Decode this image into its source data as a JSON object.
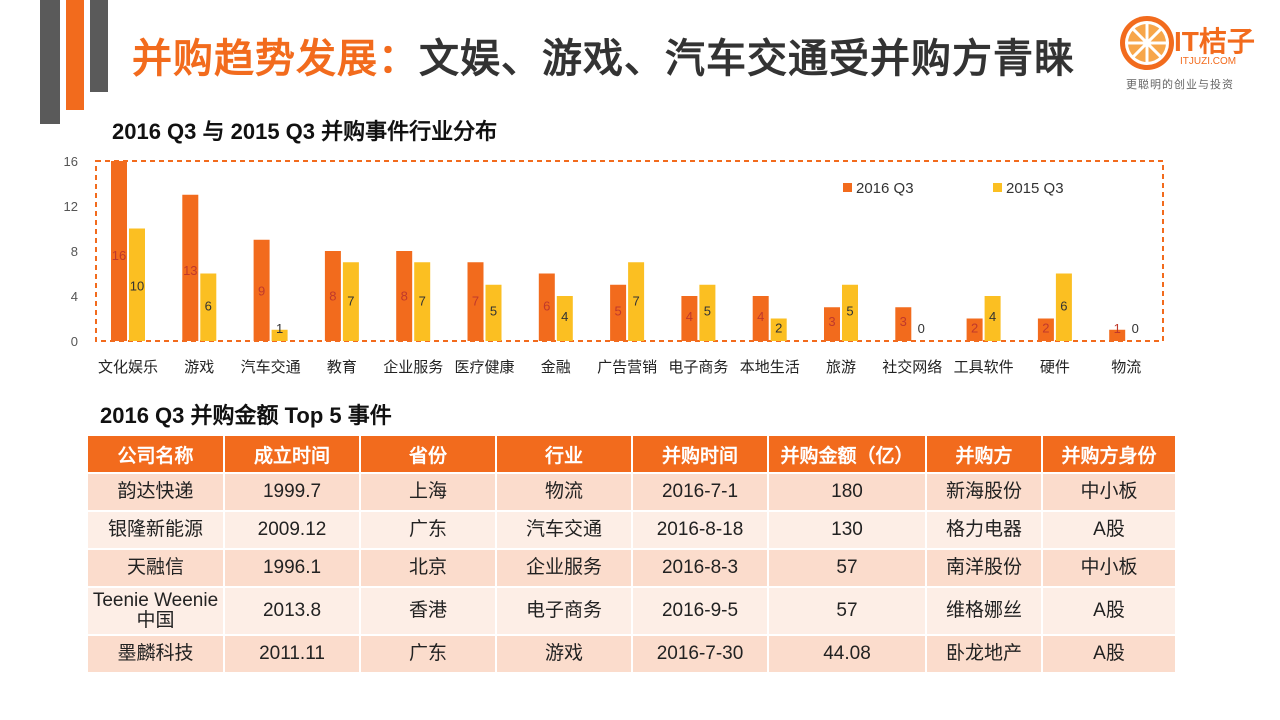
{
  "header": {
    "title_highlight": "并购趋势发展：",
    "title_rest": "文娱、游戏、汽车交通受并购方青睐"
  },
  "logo": {
    "brand": "IT桔子",
    "url": "ITJUZI.COM",
    "slogan": "更聪明的创业与投资"
  },
  "colors": {
    "accent": "#f26b1d",
    "series_2016": "#f26b1d",
    "series_2015": "#fbbf22"
  },
  "chart_data": {
    "type": "bar",
    "title": "2016 Q3 与 2015 Q3 并购事件行业分布",
    "categories": [
      "文化娱乐",
      "游戏",
      "汽车交通",
      "教育",
      "企业服务",
      "医疗健康",
      "金融",
      "广告营销",
      "电子商务",
      "本地生活",
      "旅游",
      "社交网络",
      "工具软件",
      "硬件",
      "物流"
    ],
    "series": [
      {
        "name": "2016 Q3",
        "values": [
          16,
          13,
          9,
          8,
          8,
          7,
          6,
          5,
          4,
          4,
          3,
          3,
          2,
          2,
          1
        ]
      },
      {
        "name": "2015 Q3",
        "values": [
          10,
          6,
          1,
          7,
          7,
          5,
          4,
          7,
          5,
          2,
          5,
          0,
          4,
          6,
          0
        ]
      }
    ],
    "yticks": [
      0,
      4,
      8,
      12,
      16
    ],
    "ylim": [
      0,
      16
    ],
    "legend": "top-right",
    "grid": false
  },
  "table": {
    "title": "2016 Q3 并购金额 Top 5 事件",
    "headers": [
      "公司名称",
      "成立时间",
      "省份",
      "行业",
      "并购时间",
      "并购金额（亿）",
      "并购方",
      "并购方身份"
    ],
    "rows": [
      [
        "韵达快递",
        "1999.7",
        "上海",
        "物流",
        "2016-7-1",
        "180",
        "新海股份",
        "中小板"
      ],
      [
        "银隆新能源",
        "2009.12",
        "广东",
        "汽车交通",
        "2016-8-18",
        "130",
        "格力电器",
        "A股"
      ],
      [
        "天融信",
        "1996.1",
        "北京",
        "企业服务",
        "2016-8-3",
        "57",
        "南洋股份",
        "中小板"
      ],
      [
        "Teenie Weenie中国",
        "2013.8",
        "香港",
        "电子商务",
        "2016-9-5",
        "57",
        "维格娜丝",
        "A股"
      ],
      [
        "墨麟科技",
        "2011.11",
        "广东",
        "游戏",
        "2016-7-30",
        "44.08",
        "卧龙地产",
        "A股"
      ]
    ]
  }
}
